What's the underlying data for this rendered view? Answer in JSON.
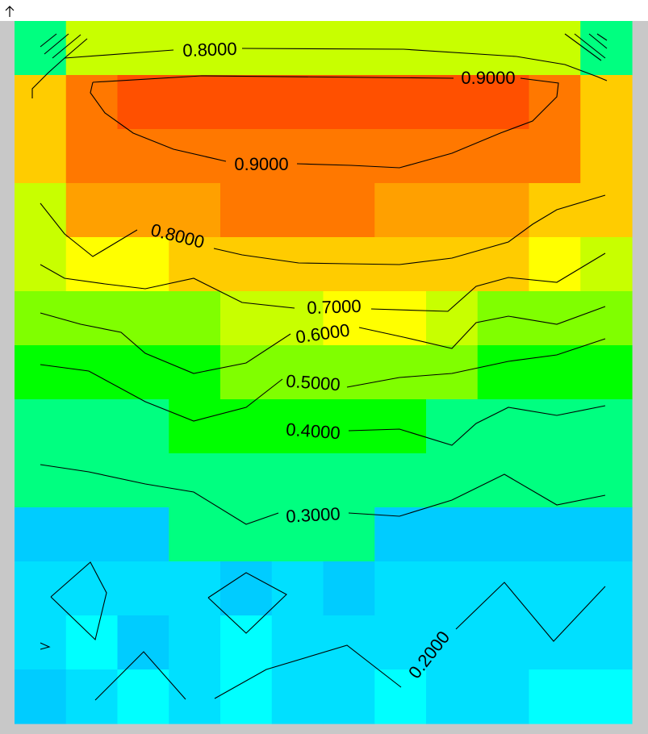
{
  "toolbar": {
    "up_icon": "arrow-up-icon"
  },
  "chart_data": {
    "type": "heatmap",
    "title": "",
    "xlabel": "",
    "ylabel": "",
    "grid_cols": 12,
    "grid_rows": 13,
    "colormap": [
      "#00ffff",
      "#00e0ff",
      "#00ccff",
      "#00ff80",
      "#00ff00",
      "#80ff00",
      "#c8ff00",
      "#ffff00",
      "#ffcc00",
      "#ffa000",
      "#ff7800",
      "#ff5000"
    ],
    "values": [
      [
        0.45,
        0.7,
        0.72,
        0.74,
        0.76,
        0.76,
        0.76,
        0.76,
        0.76,
        0.74,
        0.7,
        0.45
      ],
      [
        0.85,
        0.93,
        0.94,
        0.95,
        0.95,
        0.95,
        0.95,
        0.95,
        0.95,
        0.94,
        0.93,
        0.85
      ],
      [
        0.84,
        0.91,
        0.92,
        0.93,
        0.93,
        0.93,
        0.93,
        0.93,
        0.93,
        0.92,
        0.91,
        0.84
      ],
      [
        0.76,
        0.88,
        0.89,
        0.9,
        0.91,
        0.91,
        0.91,
        0.9,
        0.89,
        0.88,
        0.86,
        0.84
      ],
      [
        0.7,
        0.79,
        0.82,
        0.84,
        0.85,
        0.86,
        0.86,
        0.86,
        0.85,
        0.84,
        0.8,
        0.74
      ],
      [
        0.6,
        0.65,
        0.67,
        0.69,
        0.74,
        0.76,
        0.78,
        0.78,
        0.76,
        0.68,
        0.66,
        0.62
      ],
      [
        0.55,
        0.56,
        0.57,
        0.58,
        0.6,
        0.61,
        0.62,
        0.63,
        0.62,
        0.59,
        0.57,
        0.55
      ],
      [
        0.42,
        0.45,
        0.47,
        0.52,
        0.54,
        0.51,
        0.52,
        0.53,
        0.48,
        0.47,
        0.46,
        0.44
      ],
      [
        0.35,
        0.36,
        0.37,
        0.38,
        0.39,
        0.38,
        0.37,
        0.37,
        0.36,
        0.35,
        0.36,
        0.35
      ],
      [
        0.24,
        0.25,
        0.28,
        0.3,
        0.32,
        0.31,
        0.3,
        0.29,
        0.28,
        0.26,
        0.27,
        0.28
      ],
      [
        0.17,
        0.17,
        0.18,
        0.19,
        0.2,
        0.18,
        0.2,
        0.17,
        0.18,
        0.19,
        0.18,
        0.18
      ],
      [
        0.16,
        0.14,
        0.21,
        0.17,
        0.1,
        0.17,
        0.18,
        0.18,
        0.16,
        0.18,
        0.17,
        0.16
      ],
      [
        0.22,
        0.17,
        0.12,
        0.17,
        0.15,
        0.16,
        0.16,
        0.15,
        0.17,
        0.16,
        0.14,
        0.15
      ]
    ],
    "contour_levels": [
      "0.8000",
      "0.9000",
      "0.9000",
      "0.8000",
      "0.7000",
      "0.6000",
      "0.5000",
      "0.4000",
      "0.3000",
      "0.2000"
    ]
  }
}
